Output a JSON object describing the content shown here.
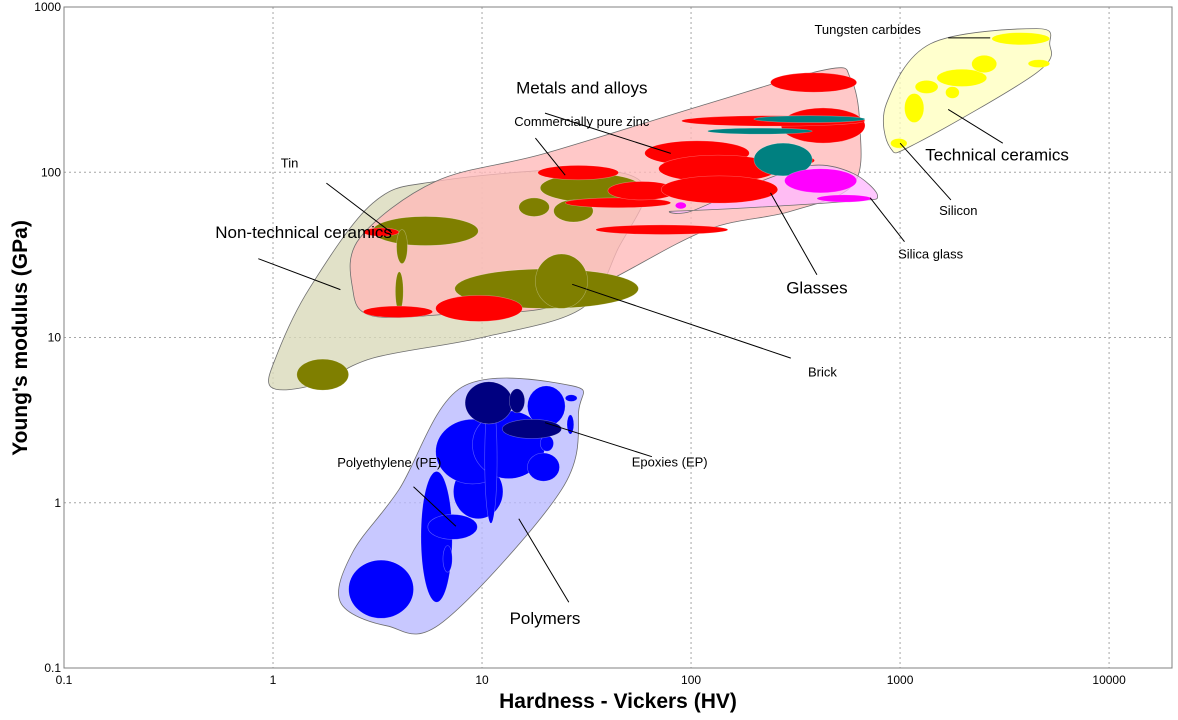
{
  "chart_data": {
    "type": "scatter",
    "title": "",
    "xlabel": "Hardness - Vickers (HV)",
    "ylabel": "Young's modulus (GPa)",
    "xscale": "log",
    "yscale": "log",
    "xlim": [
      0.1,
      20000
    ],
    "ylim": [
      0.1,
      1000
    ],
    "grid": true,
    "x_ticks": [
      "0.1",
      "1",
      "10",
      "100",
      "1000",
      "10000"
    ],
    "y_ticks": [
      "0.1",
      "1",
      "10",
      "100",
      "1000"
    ],
    "colors": {
      "metals": "#ff0000",
      "metals_teal": "#008080",
      "metals_envelope": "#ffb8b8",
      "nontech": "#7f7f00",
      "nontech_envelope": "#d9d9b8",
      "tech": "#ffff00",
      "tech_envelope": "#ffffbf",
      "glass": "#ff00ff",
      "glass_envelope": "#ffb8ff",
      "polymer": "#0000ff",
      "polymer_dark": "#000080",
      "polymer_envelope": "#b8b8ff"
    },
    "envelopes": [
      {
        "family": "nontech",
        "points": [
          [
            3,
            65
          ],
          [
            6,
            88
          ],
          [
            30,
            104
          ],
          [
            60,
            82
          ],
          [
            45,
            35
          ],
          [
            30,
            15
          ],
          [
            10,
            10
          ],
          [
            3,
            7.5
          ],
          [
            1.6,
            5.2
          ],
          [
            0.98,
            5
          ],
          [
            1.05,
            8
          ],
          [
            1.5,
            20
          ]
        ]
      },
      {
        "family": "metals",
        "points": [
          [
            2.6,
            40
          ],
          [
            6,
            88
          ],
          [
            20,
            130
          ],
          [
            120,
            260
          ],
          [
            450,
            420
          ],
          [
            580,
            370
          ],
          [
            640,
            200
          ],
          [
            600,
            85
          ],
          [
            300,
            58
          ],
          [
            120,
            45
          ],
          [
            40,
            22
          ],
          [
            20,
            15
          ],
          [
            8,
            14
          ],
          [
            3,
            13.5
          ],
          [
            2.4,
            20
          ]
        ]
      },
      {
        "family": "tech",
        "points": [
          [
            900,
            140
          ],
          [
            1200,
            150
          ],
          [
            4500,
            400
          ],
          [
            5200,
            600
          ],
          [
            4500,
            740
          ],
          [
            1400,
            600
          ],
          [
            860,
            260
          ]
        ]
      },
      {
        "family": "glass",
        "points": [
          [
            100,
            58
          ],
          [
            200,
            85
          ],
          [
            380,
            110
          ],
          [
            600,
            98
          ],
          [
            780,
            72
          ],
          [
            600,
            67
          ],
          [
            150,
            60
          ],
          [
            80,
            58
          ]
        ]
      },
      {
        "family": "polymer",
        "points": [
          [
            8,
            5
          ],
          [
            27,
            5.1
          ],
          [
            29,
            3.6
          ],
          [
            24,
            1.2
          ],
          [
            6.5,
            0.19
          ],
          [
            3.5,
            0.18
          ],
          [
            2.1,
            0.25
          ],
          [
            2.4,
            0.5
          ],
          [
            4,
            1.2
          ]
        ]
      }
    ],
    "series": [
      {
        "family": "nontech",
        "ellipses": [
          {
            "x": [
              1.3,
              2.3
            ],
            "y": [
              4.8,
              7.4
            ]
          },
          {
            "x": [
              3.0,
              9.6
            ],
            "y": [
              36,
              54
            ]
          },
          {
            "x": [
              15,
              21
            ],
            "y": [
              54,
              70
            ]
          },
          {
            "x": [
              3.9,
              4.4
            ],
            "y": [
              28,
              45
            ]
          },
          {
            "x": [
              3.85,
              4.2
            ],
            "y": [
              14.5,
              25
            ]
          },
          {
            "x": [
              7.4,
              56
            ],
            "y": [
              15,
              26
            ]
          },
          {
            "x": [
              18,
              32
            ],
            "y": [
              15,
              32
            ]
          },
          {
            "x": [
              19,
              58
            ],
            "y": [
              66,
              98
            ]
          },
          {
            "x": [
              22,
              34
            ],
            "y": [
              50,
              68
            ]
          }
        ]
      },
      {
        "family": "metals",
        "ellipses": [
          {
            "x": [
              2.7,
              4.0
            ],
            "y": [
              41,
              46
            ]
          },
          {
            "x": [
              2.7,
              5.8
            ],
            "y": [
              13.2,
              15.5
            ]
          },
          {
            "x": [
              6.0,
              15.6
            ],
            "y": [
              12.5,
              18
            ]
          },
          {
            "x": [
              18.5,
              45
            ],
            "y": [
              90,
              110
            ]
          },
          {
            "x": [
              25,
              80
            ],
            "y": [
              61,
              70
            ]
          },
          {
            "x": [
              35,
              150
            ],
            "y": [
              42,
              48
            ]
          },
          {
            "x": [
              60,
              190
            ],
            "y": [
              110,
              155
            ]
          },
          {
            "x": [
              40,
              85
            ],
            "y": [
              68,
              88
            ]
          },
          {
            "x": [
              70,
              260
            ],
            "y": [
              87,
              127
            ]
          },
          {
            "x": [
              72,
              260
            ],
            "y": [
              65,
              95
            ]
          },
          {
            "x": [
              270,
              680
            ],
            "y": [
              150,
              245
            ]
          },
          {
            "x": [
              90,
              680
            ],
            "y": [
              190,
              220
            ]
          },
          {
            "x": [
              240,
              620
            ],
            "y": [
              305,
              400
            ]
          },
          {
            "x": [
              270,
              390
            ],
            "y": [
              111,
              125
            ]
          }
        ]
      },
      {
        "family": "metals_teal",
        "ellipses": [
          {
            "x": [
              200,
              380
            ],
            "y": [
              95,
              150
            ]
          },
          {
            "x": [
              120,
              380
            ],
            "y": [
              170,
              185
            ]
          },
          {
            "x": [
              200,
              680
            ],
            "y": [
              200,
              220
            ]
          }
        ]
      },
      {
        "family": "glass",
        "ellipses": [
          {
            "x": [
              280,
              620
            ],
            "y": [
              75,
              105
            ]
          },
          {
            "x": [
              400,
              730
            ],
            "y": [
              66,
              73
            ]
          },
          {
            "x": [
              84,
              95
            ],
            "y": [
              60,
              66
            ]
          }
        ]
      },
      {
        "family": "tech",
        "ellipses": [
          {
            "x": [
              1500,
              2600
            ],
            "y": [
              330,
              420
            ]
          },
          {
            "x": [
              1180,
              1520
            ],
            "y": [
              300,
              360
            ]
          },
          {
            "x": [
              1650,
              1920
            ],
            "y": [
              280,
              330
            ]
          },
          {
            "x": [
              1050,
              1300
            ],
            "y": [
              200,
              300
            ]
          },
          {
            "x": [
              900,
              1080
            ],
            "y": [
              140,
              160
            ]
          },
          {
            "x": [
              2200,
              2900
            ],
            "y": [
              400,
              510
            ]
          },
          {
            "x": [
              2750,
              5200
            ],
            "y": [
              590,
              700
            ]
          },
          {
            "x": [
              4100,
              5200
            ],
            "y": [
              430,
              480
            ]
          }
        ]
      },
      {
        "family": "polymer",
        "ellipses": [
          {
            "x": [
              2.3,
              4.7
            ],
            "y": [
              0.2,
              0.45
            ]
          },
          {
            "x": [
              5.1,
              7.2
            ],
            "y": [
              0.25,
              1.55
            ]
          },
          {
            "x": [
              5.5,
              9.5
            ],
            "y": [
              0.6,
              0.85
            ]
          },
          {
            "x": [
              7.3,
              12.6
            ],
            "y": [
              0.8,
              1.7
            ]
          },
          {
            "x": [
              6.0,
              13.5
            ],
            "y": [
              1.3,
              3.2
            ]
          },
          {
            "x": [
              9.0,
              20
            ],
            "y": [
              1.4,
              3.6
            ]
          },
          {
            "x": [
              10.3,
              11.8
            ],
            "y": [
              0.75,
              4.5
            ]
          },
          {
            "x": [
              16.5,
              25
            ],
            "y": [
              2.9,
              5.1
            ]
          },
          {
            "x": [
              16.5,
              23.5
            ],
            "y": [
              1.35,
              2.0
            ]
          },
          {
            "x": [
              19,
              22
            ],
            "y": [
              2.05,
              2.55
            ]
          },
          {
            "x": [
              6.5,
              7.2
            ],
            "y": [
              0.38,
              0.55
            ]
          },
          {
            "x": [
              25.5,
              27.5
            ],
            "y": [
              2.6,
              3.4
            ]
          },
          {
            "x": [
              25,
              28.5
            ],
            "y": [
              4.1,
              4.5
            ]
          }
        ]
      },
      {
        "family": "polymer_dark",
        "ellipses": [
          {
            "x": [
              8.3,
              14
            ],
            "y": [
              3.0,
              5.4
            ]
          },
          {
            "x": [
              12.5,
              24
            ],
            "y": [
              2.45,
              3.2
            ]
          },
          {
            "x": [
              13.5,
              16
            ],
            "y": [
              3.5,
              4.9
            ]
          }
        ]
      }
    ],
    "annotations": [
      {
        "text": "Metals and alloys",
        "size": 17,
        "anchor": "middle",
        "label_at": [
          30,
          300
        ],
        "points": [
          [
            80,
            130
          ],
          [
            20,
            228
          ]
        ]
      },
      {
        "text": "Commercially pure zinc",
        "size": 13,
        "anchor": "middle",
        "label_at": [
          30,
          190
        ],
        "points": [
          [
            25,
            96
          ],
          [
            18,
            161
          ]
        ]
      },
      {
        "text": "Tin",
        "size": 13,
        "anchor": "middle",
        "label_at": [
          1.2,
          107
        ],
        "points": [
          [
            3.7,
            43
          ],
          [
            1.8,
            86
          ]
        ]
      },
      {
        "text": "Non-technical ceramics",
        "size": 17,
        "anchor": "middle",
        "label_at": [
          1.4,
          40
        ],
        "points": [
          [
            2.1,
            19.5
          ],
          [
            0.85,
            30
          ]
        ]
      },
      {
        "text": "Brick",
        "size": 13,
        "anchor": "middle",
        "label_at": [
          425,
          5.8
        ],
        "points": [
          [
            27,
            21
          ],
          [
            300,
            7.5
          ]
        ]
      },
      {
        "text": "Tungsten carbides",
        "size": 13,
        "anchor": "middle",
        "label_at": [
          700,
          685
        ],
        "points": [
          [
            2700,
            650
          ],
          [
            1700,
            650
          ]
        ]
      },
      {
        "text": "Technical ceramics",
        "size": 17,
        "anchor": "start",
        "label_at": [
          1320,
          118
        ],
        "points": [
          [
            1700,
            240
          ],
          [
            3100,
            150
          ]
        ]
      },
      {
        "text": "Silicon",
        "size": 13,
        "anchor": "middle",
        "label_at": [
          1900,
          55
        ],
        "points": [
          [
            1000,
            150
          ],
          [
            1750,
            68
          ]
        ]
      },
      {
        "text": "Silica glass",
        "size": 13,
        "anchor": "middle",
        "label_at": [
          1400,
          30
        ],
        "points": [
          [
            720,
            70
          ],
          [
            1050,
            38
          ]
        ]
      },
      {
        "text": "Glasses",
        "size": 17,
        "anchor": "middle",
        "label_at": [
          400,
          18.5
        ],
        "points": [
          [
            240,
            75
          ],
          [
            400,
            24
          ]
        ]
      },
      {
        "text": "Epoxies (EP)",
        "size": 13,
        "anchor": "middle",
        "label_at": [
          79,
          1.66
        ],
        "points": [
          [
            20,
            3.05
          ],
          [
            65,
            1.9
          ]
        ]
      },
      {
        "text": "Polyethylene (PE)",
        "size": 13,
        "anchor": "middle",
        "label_at": [
          3.6,
          1.65
        ],
        "points": [
          [
            7.5,
            0.72
          ],
          [
            4.7,
            1.25
          ]
        ]
      },
      {
        "text": "Polymers",
        "size": 17,
        "anchor": "middle",
        "label_at": [
          20,
          0.185
        ],
        "points": [
          [
            15,
            0.8
          ],
          [
            26,
            0.25
          ]
        ]
      }
    ]
  }
}
